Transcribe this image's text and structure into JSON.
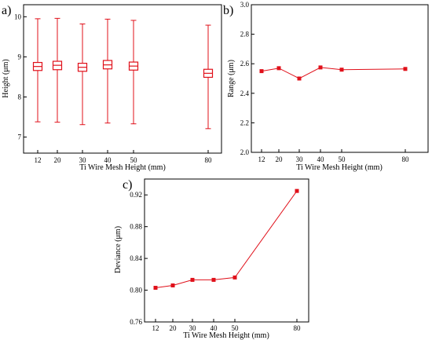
{
  "chart_data": [
    {
      "panel": "a)",
      "type": "box",
      "xlabel": "Ti Wire Mesh Height (mm)",
      "ylabel": "Height (μm)",
      "x_ticks": [
        12,
        20,
        30,
        40,
        50,
        80
      ],
      "y_ticks": [
        7,
        8,
        9,
        10
      ],
      "ylim": [
        6.6,
        10.3
      ],
      "color": "#e0101a",
      "boxes": [
        {
          "x": 12,
          "min": 7.38,
          "q1": 8.66,
          "median": 8.76,
          "q3": 8.86,
          "max": 9.95
        },
        {
          "x": 20,
          "min": 7.37,
          "q1": 8.68,
          "median": 8.79,
          "q3": 8.89,
          "max": 9.96
        },
        {
          "x": 30,
          "min": 7.31,
          "q1": 8.64,
          "median": 8.74,
          "q3": 8.84,
          "max": 9.82
        },
        {
          "x": 40,
          "min": 7.35,
          "q1": 8.7,
          "median": 8.8,
          "q3": 8.91,
          "max": 9.94
        },
        {
          "x": 50,
          "min": 7.33,
          "q1": 8.67,
          "median": 8.77,
          "q3": 8.87,
          "max": 9.91
        },
        {
          "x": 80,
          "min": 7.21,
          "q1": 8.49,
          "median": 8.59,
          "q3": 8.69,
          "max": 9.79
        }
      ]
    },
    {
      "panel": "b)",
      "type": "line",
      "xlabel": "Ti Wire Mesh Height (mm)",
      "ylabel": "Range (μm)",
      "x_ticks": [
        12,
        20,
        30,
        40,
        50,
        80
      ],
      "y_ticks": [
        "2.0",
        "2.2",
        "2.4",
        "2.6",
        "2.8",
        "3.0"
      ],
      "ylim": [
        2.0,
        3.0
      ],
      "color": "#e0101a",
      "x": [
        12,
        20,
        30,
        40,
        50,
        80
      ],
      "values": [
        2.55,
        2.57,
        2.5,
        2.575,
        2.56,
        2.565
      ]
    },
    {
      "panel": "c)",
      "type": "line",
      "xlabel": "Ti Wire Mesh Height (mm)",
      "ylabel": "Deviance (μm)",
      "x_ticks": [
        12,
        20,
        30,
        40,
        50,
        80
      ],
      "y_ticks": [
        "0.76",
        "0.80",
        "0.84",
        "0.88",
        "0.92"
      ],
      "ylim": [
        0.76,
        0.94
      ],
      "color": "#e0101a",
      "x": [
        12,
        20,
        30,
        40,
        50,
        80
      ],
      "values": [
        0.803,
        0.806,
        0.813,
        0.813,
        0.816,
        0.925
      ]
    }
  ]
}
